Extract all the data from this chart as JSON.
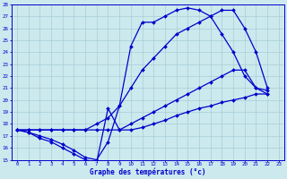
{
  "xlabel": "Graphe des températures (°c)",
  "xlim": [
    -0.5,
    23.5
  ],
  "ylim": [
    15,
    28
  ],
  "yticks": [
    15,
    16,
    17,
    18,
    19,
    20,
    21,
    22,
    23,
    24,
    25,
    26,
    27,
    28
  ],
  "xticks": [
    0,
    1,
    2,
    3,
    4,
    5,
    6,
    7,
    8,
    9,
    10,
    11,
    12,
    13,
    14,
    15,
    16,
    17,
    18,
    19,
    20,
    21,
    22,
    23
  ],
  "bg_color": "#cce9ee",
  "line_color": "#0000cc",
  "grid_color": "#a8cdd6",
  "lines": [
    {
      "x": [
        0,
        1,
        2,
        3,
        4,
        5,
        6,
        7,
        8,
        9,
        10,
        11,
        12,
        13,
        14,
        15,
        16,
        17,
        18,
        19,
        20,
        21,
        22
      ],
      "y": [
        17.5,
        17.3,
        17.0,
        16.7,
        16.3,
        15.8,
        15.2,
        15.0,
        16.5,
        19.5,
        24.5,
        26.5,
        26.5,
        27.0,
        27.5,
        27.7,
        27.5,
        27.0,
        25.5,
        24.0,
        22.0,
        21.0,
        20.8
      ]
    },
    {
      "x": [
        0,
        1,
        2,
        3,
        4,
        5,
        6,
        7,
        8,
        9,
        10,
        11,
        12,
        13,
        14,
        15,
        16,
        17,
        18,
        19,
        20,
        21,
        22
      ],
      "y": [
        17.5,
        17.5,
        17.5,
        17.5,
        17.5,
        17.5,
        17.5,
        18.0,
        18.5,
        19.5,
        21.0,
        22.5,
        23.5,
        24.5,
        25.5,
        26.0,
        26.5,
        27.0,
        27.5,
        27.5,
        26.0,
        24.0,
        21.0
      ]
    },
    {
      "x": [
        0,
        1,
        2,
        3,
        4,
        5,
        6,
        7,
        8,
        9,
        10,
        11,
        12,
        13,
        14,
        15,
        16,
        17,
        18,
        19,
        20,
        21,
        22
      ],
      "y": [
        17.5,
        17.5,
        17.5,
        17.5,
        17.5,
        17.5,
        17.5,
        17.5,
        17.5,
        17.5,
        17.5,
        17.7,
        18.0,
        18.3,
        18.7,
        19.0,
        19.3,
        19.5,
        19.8,
        20.0,
        20.2,
        20.5,
        20.5
      ]
    },
    {
      "x": [
        0,
        1,
        2,
        3,
        4,
        5,
        6,
        7,
        8,
        9,
        10,
        11,
        12,
        13,
        14,
        15,
        16,
        17,
        18,
        19,
        20,
        21,
        22
      ],
      "y": [
        17.5,
        17.3,
        16.8,
        16.5,
        16.0,
        15.5,
        15.0,
        14.8,
        19.3,
        17.5,
        18.0,
        18.5,
        19.0,
        19.5,
        20.0,
        20.5,
        21.0,
        21.5,
        22.0,
        22.5,
        22.5,
        21.0,
        20.5
      ]
    }
  ]
}
